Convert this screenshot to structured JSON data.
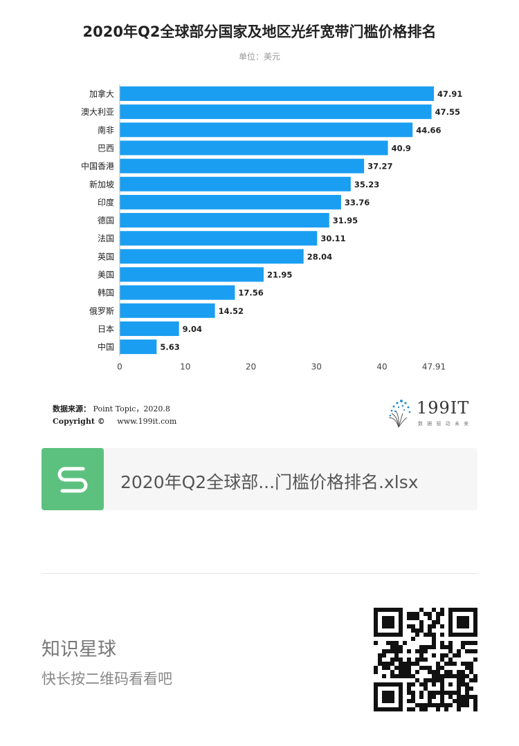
{
  "chart_data": {
    "type": "bar",
    "orientation": "horizontal",
    "title": "2020年Q2全球部分国家及地区光纤宽带门槛价格排名",
    "subtitle": "单位：美元",
    "categories": [
      "加拿大",
      "澳大利亚",
      "南非",
      "巴西",
      "中国香港",
      "新加坡",
      "印度",
      "德国",
      "法国",
      "英国",
      "美国",
      "韩国",
      "俄罗斯",
      "日本",
      "中国"
    ],
    "values": [
      47.91,
      47.55,
      44.66,
      40.9,
      37.27,
      35.23,
      33.76,
      31.95,
      30.11,
      28.04,
      21.95,
      17.56,
      14.52,
      9.04,
      5.63
    ],
    "value_labels": [
      "47.91",
      "47.55",
      "44.66",
      "40.9",
      "37.27",
      "35.23",
      "33.76",
      "31.95",
      "30.11",
      "28.04",
      "21.95",
      "17.56",
      "14.52",
      "9.04",
      "5.63"
    ],
    "x_ticks": [
      "0",
      "10",
      "20",
      "30",
      "40",
      "47.91"
    ],
    "x_tick_values": [
      0,
      10,
      20,
      30,
      40,
      47.91
    ],
    "xlim": [
      0,
      47.91
    ],
    "bar_color": "#1a9ef2",
    "grid": false,
    "legend": "none"
  },
  "source": {
    "label": "数据来源：",
    "value": "Point Topic，2020.8",
    "copyright_label": "Copyright ©",
    "site": "www.199it.com"
  },
  "logo": {
    "text": "199IT",
    "tagline": "数 据 驱 动 未 来",
    "color": "#333333"
  },
  "file_card": {
    "name": "2020年Q2全球部...门槛价格排名.xlsx",
    "icon": "spreadsheet-s-icon",
    "icon_color": "#5cc17f"
  },
  "footer": {
    "title": "知识星球",
    "subtitle": "快长按二维码看看吧"
  }
}
